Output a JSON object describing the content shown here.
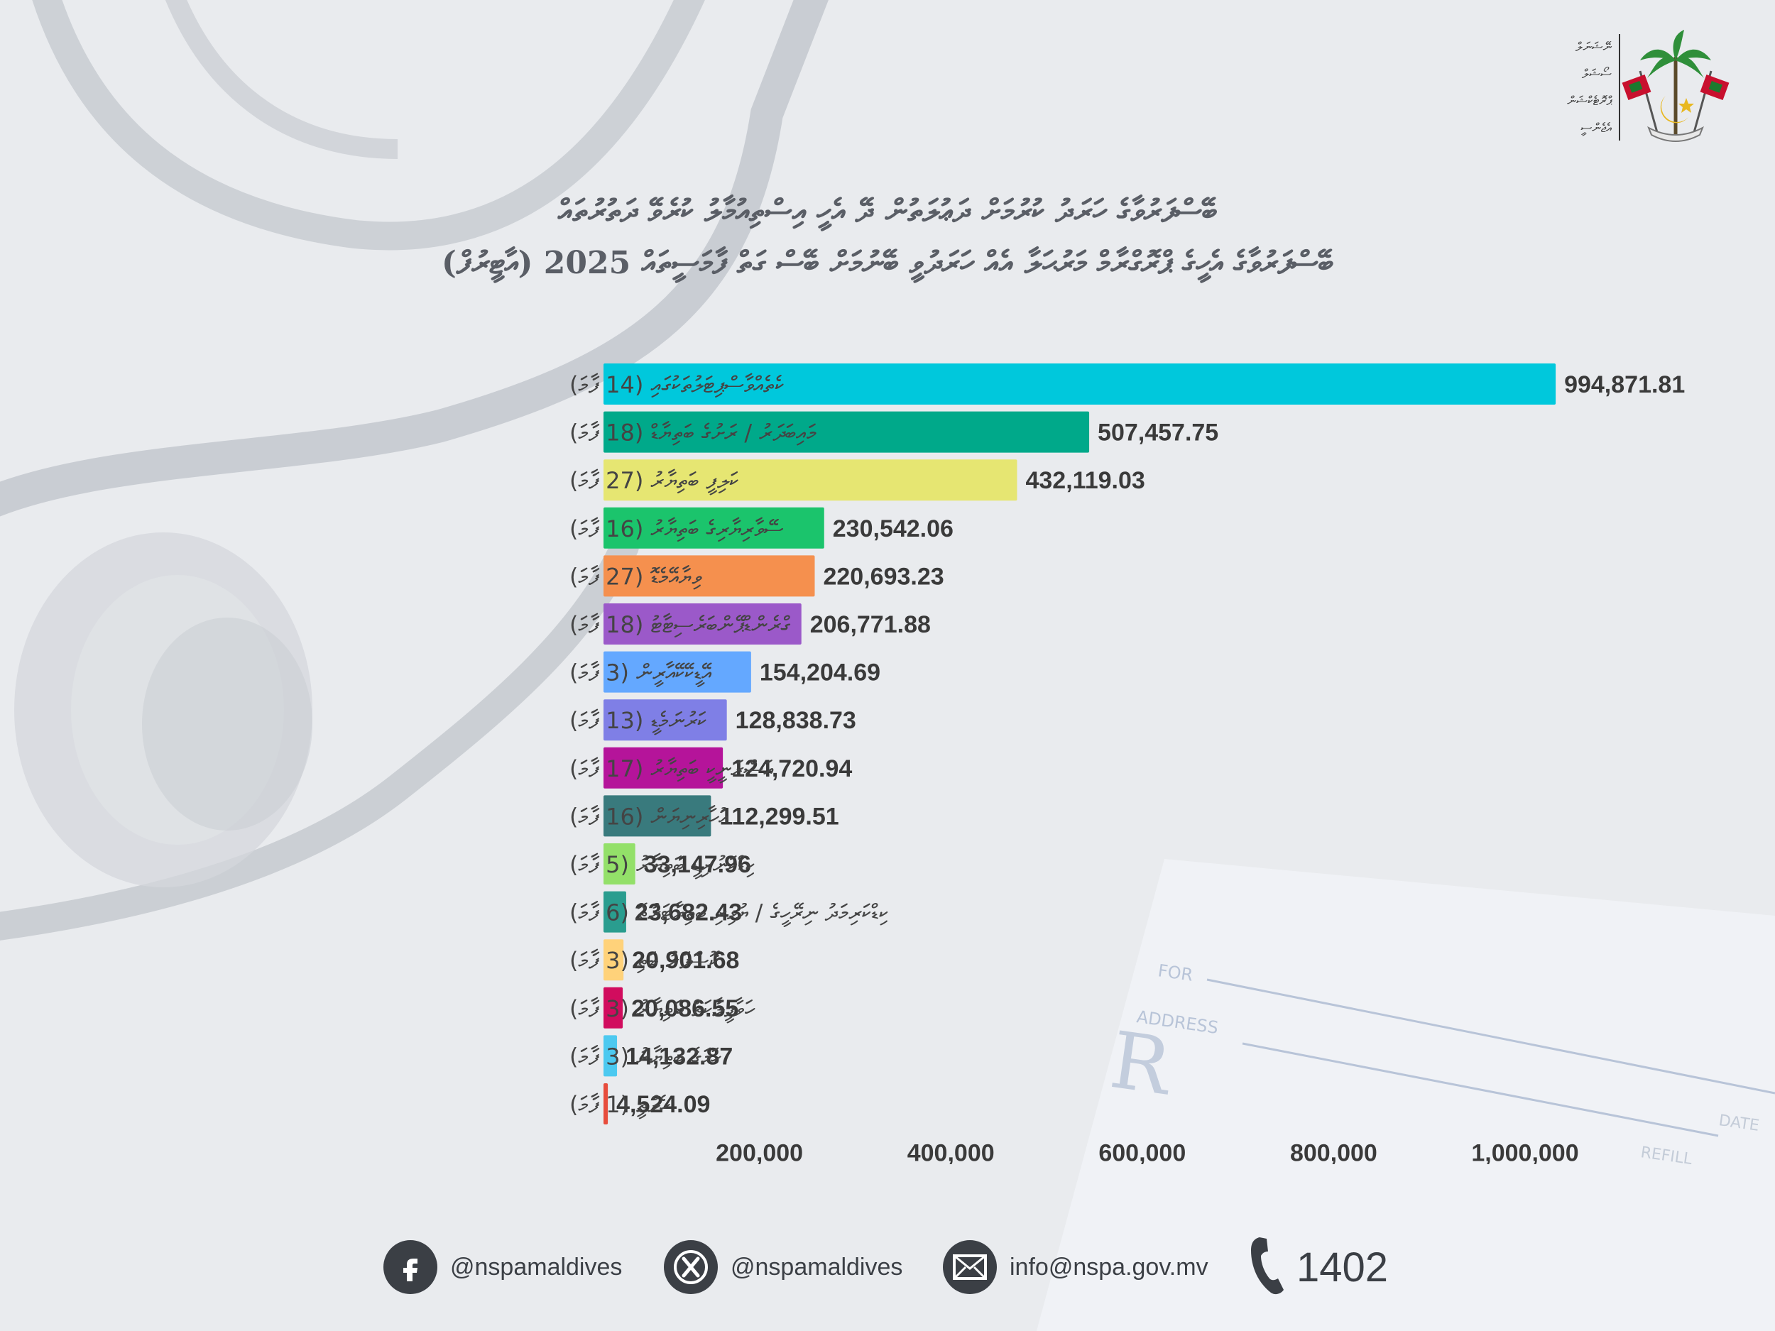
{
  "logo": {
    "text_lines": [
      "ނޭޝަނަލް",
      "ސޯޝަލް",
      "ޕްރޮޓެކްޝަން",
      "އެޖެންސީ"
    ]
  },
  "title": {
    "line1": "ބޭސްފަރުވާގެ ހަރަދު ކުރުމަށް ދަޢުލަތުން ދޭ އެހީ އިސްތިއުމާލު ކުރެވޭ ދަތުރުތައް",
    "line2": "ބޭސްފަރުވާގެ އެހީގެ ޕްރޮގްރާމް މަރުޙަލާ އެއް ހަރަދުވީ ބޭނުމަށް ބޭސް ގަތް ފާމަސީތައް 2025 (އާޓީރުފް)"
  },
  "chart_data": {
    "type": "bar",
    "orientation": "horizontal",
    "categories": [
      "ކެތެއްވާސްޕިޓަލުތަކުގައި (14 ފާމަ)",
      "މައިބަދަރު / ރަށުގެ ބަތިޔާޑް (18 ފާމަ)",
      "ކަލިފީ ބަތިޔާރު (27 ފާމަ)",
      "ސޭވާރިޔާރިގެ ބަތިޔާރު (16 ފާމަ)",
      "ވިޔާއޭމެޑޮ (27 ފާމަ)",
      "ގްރެންޑްޕޭންބަރެސިޓާޓު (18 ފާމަ)",
      "އޭޑީކޭކޭއާރީން (3 ފާމަ)",
      "ކަރުނަމެޑީ (13 ފާމަ)",
      "އަސްރަނީކީ ބަތިޔާރު (17 ފާމަ)",
      "އުހާރިނިޔަން (16 ފާމަ)",
      "ކިޑްކަނުރިޑީ ބަތިޔާރު (5 ފާމަ)",
      "ކިޑްކަރިމަދު ނިރޭހީގެ / ޔުޅިރި ބަތިޔާޓަރުތޮ (6 ފާމަ)",
      "ކޮސްފަރު ބަތި (3 ފާމަ)",
      "ހަވާޕީލާކަތް ބަތިޔާރު (3 ފާމަ)",
      "ހަމަގެ ބަތިޔާރު (3 ފާމަ)",
      "ހެލްތީ (1 ފާމަ)"
    ],
    "values": [
      994871.81,
      507457.75,
      432119.03,
      230542.06,
      220693.23,
      206771.88,
      154204.69,
      128838.73,
      124720.94,
      112299.51,
      33147.96,
      23682.43,
      20901.68,
      20086.55,
      14132.87,
      4524.09
    ],
    "value_labels": [
      "994,871.81",
      "507,457.75",
      "432,119.03",
      "230,542.06",
      "220,693.23",
      "206,771.88",
      "154,204.69",
      "128,838.73",
      "124,720.94",
      "112,299.51",
      "33,147.96",
      "23,682.43",
      "20,901.68",
      "20,086.55",
      "14,132.87",
      "4,524.09"
    ],
    "colors": [
      "#00c8dc",
      "#00a98a",
      "#e6e672",
      "#1bc46c",
      "#f5904e",
      "#9b59c9",
      "#64a8ff",
      "#7f7fe6",
      "#b5149a",
      "#397a7d",
      "#93e069",
      "#2a9d8f",
      "#ffd27a",
      "#d10c5e",
      "#4cc9f0",
      "#e74c3c"
    ],
    "xticks": [
      200000,
      400000,
      600000,
      800000,
      1000000
    ],
    "xtick_labels": [
      "200,000",
      "400,000",
      "600,000",
      "800,000",
      "1,000,000"
    ],
    "xlim": [
      0,
      1000000
    ],
    "grid": false,
    "legend": "none"
  },
  "footer": {
    "facebook": "@nspamaldives",
    "x": "@nspamaldives",
    "email": "info@nspa.gov.mv",
    "phone": "1402"
  }
}
